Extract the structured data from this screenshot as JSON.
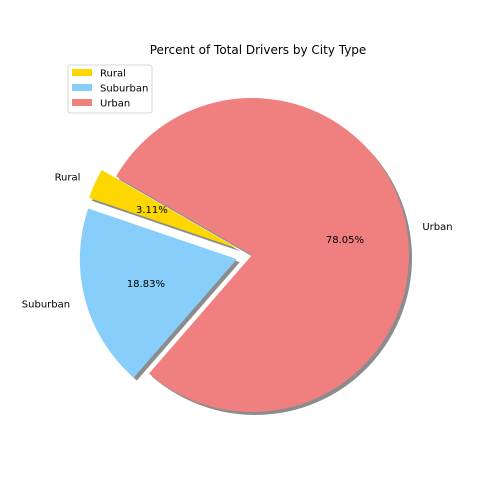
{
  "chart_data": {
    "type": "pie",
    "title": "Percent of Total Drivers by City Type",
    "start_angle_deg": 150,
    "direction": "counterclockwise",
    "shadow": true,
    "legend_position": "upper-left",
    "slices": [
      {
        "label": "Rural",
        "value": 3.11,
        "pct_label": "3.11%",
        "color": "#FFD700",
        "exploded": true
      },
      {
        "label": "Suburban",
        "value": 18.83,
        "pct_label": "18.83%",
        "color": "#87CEFA",
        "exploded": true
      },
      {
        "label": "Urban",
        "value": 78.05,
        "pct_label": "78.05%",
        "color": "#F08080",
        "exploded": false
      }
    ]
  }
}
